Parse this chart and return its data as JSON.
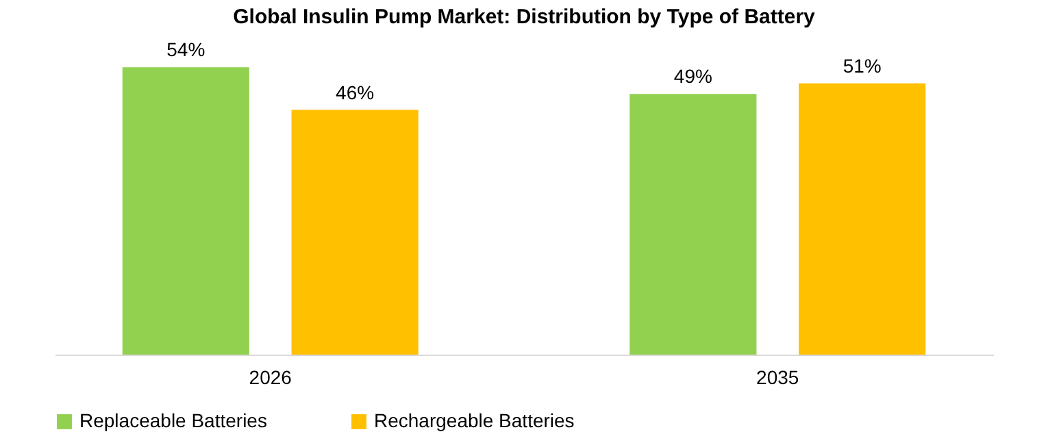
{
  "chart_data": {
    "type": "bar",
    "title": "Global Insulin Pump Market: Distribution by Type of Battery",
    "categories": [
      "2026",
      "2035"
    ],
    "series": [
      {
        "name": "Replaceable Batteries",
        "color": "#92d050",
        "values": [
          54,
          49
        ],
        "value_labels": [
          "54%",
          "49%"
        ]
      },
      {
        "name": "Rechargeable Batteries",
        "color": "#ffc000",
        "values": [
          46,
          51
        ],
        "value_labels": [
          "46%",
          "51%"
        ]
      }
    ],
    "legend": "bottom",
    "grid": false
  }
}
